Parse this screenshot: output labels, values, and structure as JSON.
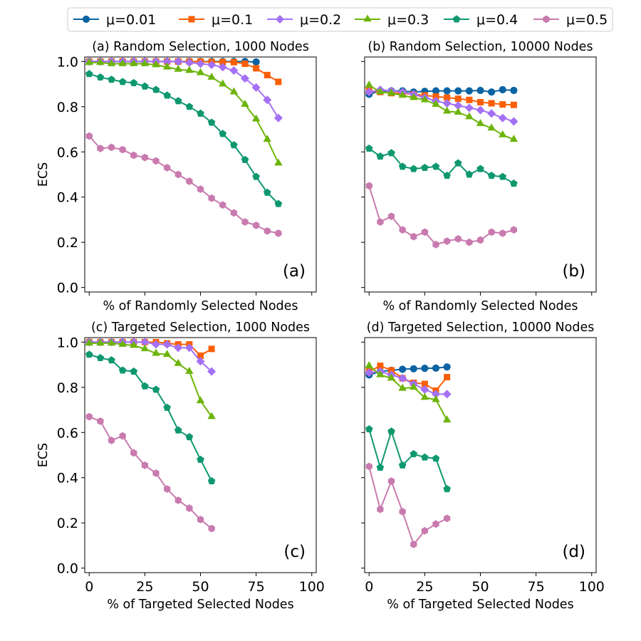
{
  "legend": {
    "placement": "top-center",
    "entries": [
      {
        "label": "μ=0.01",
        "color": "#0a63a2",
        "marker": "circle"
      },
      {
        "label": "μ=0.1",
        "color": "#fb5f06",
        "marker": "square"
      },
      {
        "label": "μ=0.2",
        "color": "#a470f6",
        "marker": "diamond"
      },
      {
        "label": "μ=0.3",
        "color": "#6db40a",
        "marker": "triangle"
      },
      {
        "label": "μ=0.4",
        "color": "#0f9870",
        "marker": "pentagon"
      },
      {
        "label": "μ=0.5",
        "color": "#c97aaf",
        "marker": "hexagon"
      }
    ]
  },
  "chart_data": [
    {
      "type": "line",
      "title": "(a) Random Selection, 1000 Nodes",
      "panel_label": "(a)",
      "xlabel": "% of Randomly Selected Nodes",
      "ylabel": "ECS",
      "xlim": [
        -2,
        102
      ],
      "ylim": [
        -0.02,
        1.02
      ],
      "x_ticks": [
        0,
        25,
        50,
        75,
        100
      ],
      "x_tick_labels": [
        "",
        "",
        "",
        "",
        ""
      ],
      "y_ticks": [
        0.0,
        0.2,
        0.4,
        0.6,
        0.8,
        1.0
      ],
      "y_tick_labels": [
        "0.0",
        "0.2",
        "0.4",
        "0.6",
        "0.8",
        "1.0"
      ],
      "grid": false,
      "series": [
        {
          "name": "μ=0.01",
          "x": [
            0,
            5,
            10,
            15,
            20,
            25,
            30,
            35,
            40,
            45,
            50,
            55,
            60,
            65,
            70,
            75
          ],
          "y": [
            1.0,
            1.0,
            1.0,
            1.0,
            1.0,
            1.0,
            1.0,
            1.0,
            1.0,
            1.0,
            1.0,
            1.0,
            1.0,
            1.0,
            1.0,
            0.998
          ]
        },
        {
          "name": "μ=0.1",
          "x": [
            0,
            5,
            10,
            15,
            20,
            25,
            30,
            35,
            40,
            45,
            50,
            55,
            60,
            65,
            70,
            75,
            80,
            85
          ],
          "y": [
            1.0,
            1.0,
            1.0,
            1.0,
            1.0,
            1.0,
            1.0,
            1.0,
            1.0,
            1.0,
            1.0,
            0.998,
            0.998,
            0.997,
            0.99,
            0.97,
            0.94,
            0.91
          ]
        },
        {
          "name": "μ=0.2",
          "x": [
            0,
            5,
            10,
            15,
            20,
            25,
            30,
            35,
            40,
            45,
            50,
            55,
            60,
            65,
            70,
            75,
            80,
            85
          ],
          "y": [
            1.0,
            1.0,
            1.0,
            1.0,
            1.0,
            1.0,
            1.0,
            1.0,
            1.0,
            0.995,
            0.99,
            0.985,
            0.975,
            0.96,
            0.925,
            0.885,
            0.83,
            0.75
          ]
        },
        {
          "name": "μ=0.3",
          "x": [
            0,
            5,
            10,
            15,
            20,
            25,
            30,
            35,
            40,
            45,
            50,
            55,
            60,
            65,
            70,
            75,
            80,
            85
          ],
          "y": [
            0.995,
            0.995,
            0.99,
            0.99,
            0.99,
            0.99,
            0.985,
            0.975,
            0.965,
            0.96,
            0.95,
            0.93,
            0.9,
            0.865,
            0.81,
            0.745,
            0.655,
            0.55
          ]
        },
        {
          "name": "μ=0.4",
          "x": [
            0,
            5,
            10,
            15,
            20,
            25,
            30,
            35,
            40,
            45,
            50,
            55,
            60,
            65,
            70,
            75,
            80,
            85
          ],
          "y": [
            0.945,
            0.93,
            0.92,
            0.91,
            0.905,
            0.89,
            0.875,
            0.85,
            0.825,
            0.8,
            0.77,
            0.73,
            0.68,
            0.63,
            0.565,
            0.49,
            0.42,
            0.37
          ]
        },
        {
          "name": "μ=0.5",
          "x": [
            0,
            5,
            10,
            15,
            20,
            25,
            30,
            35,
            40,
            45,
            50,
            55,
            60,
            65,
            70,
            75,
            80,
            85
          ],
          "y": [
            0.67,
            0.615,
            0.62,
            0.61,
            0.585,
            0.575,
            0.56,
            0.53,
            0.5,
            0.47,
            0.435,
            0.395,
            0.365,
            0.33,
            0.29,
            0.275,
            0.25,
            0.24
          ]
        }
      ]
    },
    {
      "type": "line",
      "title": "(b) Random Selection, 10000 Nodes",
      "panel_label": "(b)",
      "xlabel": "% of Randomly Selected Nodes",
      "ylabel": "",
      "xlim": [
        -2,
        102
      ],
      "ylim": [
        -0.02,
        1.02
      ],
      "x_ticks": [
        0,
        25,
        50,
        75,
        100
      ],
      "x_tick_labels": [
        "",
        "",
        "",
        "",
        ""
      ],
      "y_ticks": [
        0.0,
        0.2,
        0.4,
        0.6,
        0.8,
        1.0
      ],
      "y_tick_labels": [
        "",
        "",
        "",
        "",
        "",
        ""
      ],
      "grid": false,
      "series": [
        {
          "name": "μ=0.01",
          "x": [
            0,
            5,
            10,
            15,
            20,
            25,
            30,
            35,
            40,
            45,
            50,
            55,
            60,
            65
          ],
          "y": [
            0.855,
            0.87,
            0.87,
            0.87,
            0.865,
            0.868,
            0.87,
            0.87,
            0.87,
            0.87,
            0.872,
            0.865,
            0.875,
            0.872
          ]
        },
        {
          "name": "μ=0.1",
          "x": [
            0,
            5,
            10,
            15,
            20,
            25,
            30,
            35,
            40,
            45,
            50,
            55,
            60,
            65
          ],
          "y": [
            0.87,
            0.865,
            0.86,
            0.86,
            0.855,
            0.85,
            0.845,
            0.84,
            0.835,
            0.83,
            0.82,
            0.815,
            0.81,
            0.808
          ]
        },
        {
          "name": "μ=0.2",
          "x": [
            0,
            5,
            10,
            15,
            20,
            25,
            30,
            35,
            40,
            45,
            50,
            55,
            60,
            65
          ],
          "y": [
            0.865,
            0.875,
            0.87,
            0.865,
            0.855,
            0.84,
            0.825,
            0.815,
            0.805,
            0.795,
            0.785,
            0.77,
            0.75,
            0.735
          ]
        },
        {
          "name": "μ=0.3",
          "x": [
            0,
            5,
            10,
            15,
            20,
            25,
            30,
            35,
            40,
            45,
            50,
            55,
            60,
            65
          ],
          "y": [
            0.895,
            0.865,
            0.86,
            0.85,
            0.84,
            0.83,
            0.81,
            0.78,
            0.775,
            0.755,
            0.725,
            0.705,
            0.675,
            0.655
          ]
        },
        {
          "name": "μ=0.4",
          "x": [
            0,
            5,
            10,
            15,
            20,
            25,
            30,
            35,
            40,
            45,
            50,
            55,
            60,
            65
          ],
          "y": [
            0.615,
            0.58,
            0.595,
            0.535,
            0.525,
            0.53,
            0.535,
            0.495,
            0.55,
            0.5,
            0.525,
            0.495,
            0.49,
            0.46
          ]
        },
        {
          "name": "μ=0.5",
          "x": [
            0,
            5,
            10,
            15,
            20,
            25,
            30,
            35,
            40,
            45,
            50,
            55,
            60,
            65
          ],
          "y": [
            0.45,
            0.29,
            0.315,
            0.255,
            0.225,
            0.245,
            0.19,
            0.205,
            0.215,
            0.2,
            0.21,
            0.245,
            0.24,
            0.255
          ]
        }
      ]
    },
    {
      "type": "line",
      "title": "(c) Targeted Selection, 1000 Nodes",
      "panel_label": "(c)",
      "xlabel": "% of Targeted Selected Nodes",
      "ylabel": "ECS",
      "xlim": [
        -2,
        102
      ],
      "ylim": [
        -0.02,
        1.02
      ],
      "x_ticks": [
        0,
        25,
        50,
        75,
        100
      ],
      "x_tick_labels": [
        "0",
        "25",
        "50",
        "75",
        "100"
      ],
      "y_ticks": [
        0.0,
        0.2,
        0.4,
        0.6,
        0.8,
        1.0
      ],
      "y_tick_labels": [
        "0.0",
        "0.2",
        "0.4",
        "0.6",
        "0.8",
        "1.0"
      ],
      "grid": false,
      "series": [
        {
          "name": "μ=0.01",
          "x": [
            0,
            5,
            10,
            15,
            20
          ],
          "y": [
            1.0,
            1.0,
            1.0,
            1.0,
            1.0
          ]
        },
        {
          "name": "μ=0.1",
          "x": [
            0,
            5,
            10,
            15,
            20,
            25,
            30,
            35,
            40,
            45,
            50,
            55
          ],
          "y": [
            1.0,
            1.0,
            1.0,
            1.0,
            1.0,
            1.0,
            1.0,
            0.995,
            0.99,
            0.99,
            0.94,
            0.97
          ]
        },
        {
          "name": "μ=0.2",
          "x": [
            0,
            5,
            10,
            15,
            20,
            25,
            30,
            35,
            40,
            45,
            50,
            55
          ],
          "y": [
            1.0,
            1.0,
            1.0,
            1.0,
            1.0,
            1.0,
            0.99,
            0.99,
            0.975,
            0.975,
            0.915,
            0.87
          ]
        },
        {
          "name": "μ=0.3",
          "x": [
            0,
            5,
            10,
            15,
            20,
            25,
            30,
            35,
            40,
            45,
            50,
            55
          ],
          "y": [
            0.995,
            0.995,
            0.995,
            0.99,
            0.985,
            0.97,
            0.95,
            0.945,
            0.905,
            0.87,
            0.74,
            0.67
          ]
        },
        {
          "name": "μ=0.4",
          "x": [
            0,
            5,
            10,
            15,
            20,
            25,
            30,
            35,
            40,
            45,
            50,
            55
          ],
          "y": [
            0.945,
            0.93,
            0.92,
            0.875,
            0.87,
            0.805,
            0.79,
            0.71,
            0.61,
            0.58,
            0.48,
            0.385
          ]
        },
        {
          "name": "μ=0.5",
          "x": [
            0,
            5,
            10,
            15,
            20,
            25,
            30,
            35,
            40,
            45,
            50,
            55
          ],
          "y": [
            0.67,
            0.65,
            0.565,
            0.585,
            0.51,
            0.455,
            0.42,
            0.35,
            0.3,
            0.265,
            0.215,
            0.175
          ]
        }
      ]
    },
    {
      "type": "line",
      "title": "(d) Targeted Selection, 10000 Nodes",
      "panel_label": "(d)",
      "xlabel": "% of Targeted Selected Nodes",
      "ylabel": "",
      "xlim": [
        -2,
        102
      ],
      "ylim": [
        -0.02,
        1.02
      ],
      "x_ticks": [
        0,
        25,
        50,
        75,
        100
      ],
      "x_tick_labels": [
        "0",
        "25",
        "50",
        "75",
        "100"
      ],
      "y_ticks": [
        0.0,
        0.2,
        0.4,
        0.6,
        0.8,
        1.0
      ],
      "y_tick_labels": [
        "",
        "",
        "",
        "",
        "",
        ""
      ],
      "grid": false,
      "series": [
        {
          "name": "μ=0.01",
          "x": [
            0,
            5,
            10,
            15,
            20,
            25,
            30,
            35
          ],
          "y": [
            0.855,
            0.87,
            0.875,
            0.88,
            0.882,
            0.884,
            0.885,
            0.89
          ]
        },
        {
          "name": "μ=0.1",
          "x": [
            0,
            5,
            10,
            15,
            20,
            25,
            30,
            35
          ],
          "y": [
            0.87,
            0.895,
            0.875,
            0.84,
            0.82,
            0.815,
            0.785,
            0.845
          ]
        },
        {
          "name": "μ=0.2",
          "x": [
            0,
            5,
            10,
            15,
            20,
            25,
            30,
            35
          ],
          "y": [
            0.865,
            0.87,
            0.855,
            0.84,
            0.815,
            0.79,
            0.77,
            0.77
          ]
        },
        {
          "name": "μ=0.3",
          "x": [
            0,
            5,
            10,
            15,
            20,
            25,
            30,
            35
          ],
          "y": [
            0.895,
            0.855,
            0.84,
            0.795,
            0.8,
            0.755,
            0.745,
            0.655
          ]
        },
        {
          "name": "μ=0.4",
          "x": [
            0,
            5,
            10,
            15,
            20,
            25,
            30,
            35
          ],
          "y": [
            0.615,
            0.445,
            0.605,
            0.455,
            0.505,
            0.49,
            0.485,
            0.35
          ]
        },
        {
          "name": "μ=0.5",
          "x": [
            0,
            5,
            10,
            15,
            20,
            25,
            30,
            35
          ],
          "y": [
            0.45,
            0.26,
            0.385,
            0.25,
            0.105,
            0.165,
            0.195,
            0.22
          ]
        }
      ]
    }
  ]
}
